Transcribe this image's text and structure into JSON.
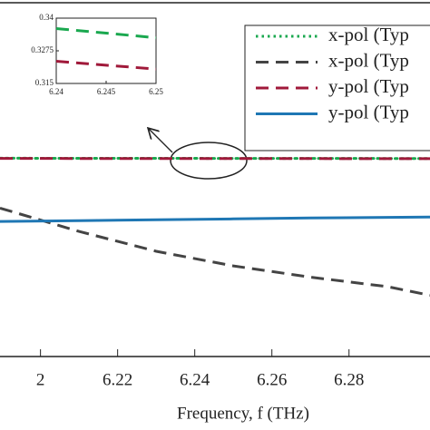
{
  "chart_data": [
    {
      "type": "line",
      "xlabel": "Frequency, f  (THz)",
      "xlim": [
        6.1895,
        6.301
      ],
      "ylim": [
        0.1,
        0.51
      ],
      "xticks": [
        {
          "value": 6.2,
          "label": "2"
        },
        6.22,
        6.24,
        6.26,
        6.28
      ],
      "legend": "upper right",
      "series": [
        {
          "name": "x-pol (Typ",
          "color": "#1aa84f",
          "style": "dotted",
          "x": [
            6.1895,
            6.21,
            6.23,
            6.25,
            6.27,
            6.29,
            6.301
          ],
          "values": [
            0.3298,
            0.3297,
            0.3297,
            0.3296,
            0.3296,
            0.3295,
            0.3295
          ]
        },
        {
          "name": "x-pol (Typ",
          "color": "#444444",
          "style": "dashed",
          "x": [
            6.1895,
            6.21,
            6.23,
            6.25,
            6.27,
            6.29,
            6.301
          ],
          "values": [
            0.272,
            0.245,
            0.222,
            0.205,
            0.192,
            0.181,
            0.171
          ]
        },
        {
          "name": "y-pol (Typ",
          "color": "#a0193a",
          "style": "dashed",
          "x": [
            6.1895,
            6.21,
            6.23,
            6.25,
            6.27,
            6.29,
            6.301
          ],
          "values": [
            0.3296,
            0.3295,
            0.3295,
            0.3294,
            0.3294,
            0.3293,
            0.3293
          ]
        },
        {
          "name": "y-pol (Typ",
          "color": "#1f77b4",
          "style": "solid",
          "x": [
            6.1895,
            6.21,
            6.23,
            6.25,
            6.27,
            6.29,
            6.301
          ],
          "values": [
            0.2565,
            0.2575,
            0.2585,
            0.2595,
            0.2605,
            0.2613,
            0.2617
          ]
        }
      ]
    },
    {
      "type": "line",
      "xlim": [
        6.24,
        6.25
      ],
      "ylim": [
        0.315,
        0.34
      ],
      "xticks": [
        6.24,
        6.245,
        6.25
      ],
      "yticks": [
        0.315,
        0.3275,
        0.34
      ],
      "series": [
        {
          "color": "#1aa84f",
          "style": "dashed",
          "x": [
            6.24,
            6.25
          ],
          "values": [
            0.336,
            0.3325
          ]
        },
        {
          "color": "#a0193a",
          "style": "dashed",
          "x": [
            6.24,
            6.25
          ],
          "values": [
            0.3235,
            0.3205
          ]
        }
      ]
    }
  ]
}
